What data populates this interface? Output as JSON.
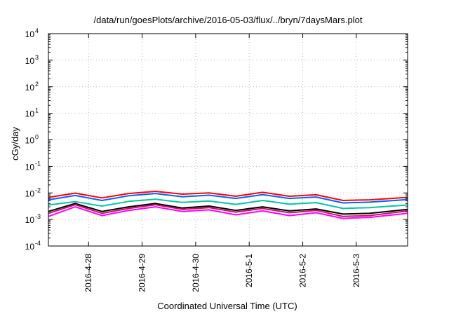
{
  "chart_data": {
    "type": "line",
    "title": "/data/run/goesPlots/archive/2016-05-03/flux/../bryn/7daysMars.plot",
    "xlabel": "Coordinated Universal Time (UTC)",
    "ylabel": "cGy/day",
    "y_scale": "log",
    "ylim": [
      0.0001,
      10000
    ],
    "y_ticks": [
      {
        "value": 0.0001,
        "base": "10",
        "exp": "-4"
      },
      {
        "value": 0.001,
        "base": "10",
        "exp": "-3"
      },
      {
        "value": 0.01,
        "base": "10",
        "exp": "-2"
      },
      {
        "value": 0.1,
        "base": "10",
        "exp": "-1"
      },
      {
        "value": 1,
        "base": "10",
        "exp": "0"
      },
      {
        "value": 10,
        "base": "10",
        "exp": "1"
      },
      {
        "value": 100,
        "base": "10",
        "exp": "2"
      },
      {
        "value": 1000,
        "base": "10",
        "exp": "3"
      },
      {
        "value": 10000,
        "base": "10",
        "exp": "4"
      }
    ],
    "xlim": [
      "2016-04-27T06:00",
      "2016-05-03T23:00"
    ],
    "x_ticks": [
      "2016-4-28",
      "2016-4-29",
      "2016-4-30",
      "2016-5-1",
      "2016-5-2",
      "2016-5-3"
    ],
    "grid": true,
    "x": [
      "2016-04-27T06:00",
      "2016-04-27T18:00",
      "2016-04-28T06:00",
      "2016-04-28T18:00",
      "2016-04-29T06:00",
      "2016-04-29T18:00",
      "2016-04-30T06:00",
      "2016-04-30T18:00",
      "2016-05-01T06:00",
      "2016-05-01T18:00",
      "2016-05-02T06:00",
      "2016-05-02T18:00",
      "2016-05-03T06:00",
      "2016-05-03T23:00"
    ],
    "series": [
      {
        "color": "#ff0000",
        "values": [
          0.0068,
          0.0098,
          0.0065,
          0.0095,
          0.0115,
          0.009,
          0.01,
          0.0075,
          0.0105,
          0.0075,
          0.0085,
          0.0052,
          0.0055,
          0.0068
        ]
      },
      {
        "color": "#0064ff",
        "values": [
          0.0055,
          0.008,
          0.0052,
          0.0078,
          0.0095,
          0.0072,
          0.0082,
          0.0062,
          0.0086,
          0.0062,
          0.007,
          0.0042,
          0.0045,
          0.0056
        ]
      },
      {
        "color": "#00c8a0",
        "values": [
          0.0035,
          0.0047,
          0.0032,
          0.0048,
          0.0058,
          0.0044,
          0.005,
          0.0037,
          0.0052,
          0.0038,
          0.0043,
          0.0026,
          0.0028,
          0.0035
        ]
      },
      {
        "color": "#000000",
        "values": [
          0.002,
          0.004,
          0.002,
          0.003,
          0.004,
          0.0027,
          0.0032,
          0.0022,
          0.003,
          0.0021,
          0.0025,
          0.0016,
          0.0017,
          0.0024
        ]
      },
      {
        "color": "#c81464",
        "values": [
          0.0017,
          0.0036,
          0.0017,
          0.0026,
          0.0036,
          0.0024,
          0.0028,
          0.0019,
          0.0026,
          0.0018,
          0.0022,
          0.0013,
          0.0014,
          0.0021
        ]
      },
      {
        "color": "#ff00ff",
        "values": [
          0.0013,
          0.003,
          0.0014,
          0.0022,
          0.003,
          0.002,
          0.0023,
          0.0015,
          0.0021,
          0.0014,
          0.0018,
          0.0011,
          0.0012,
          0.0017
        ]
      }
    ]
  }
}
